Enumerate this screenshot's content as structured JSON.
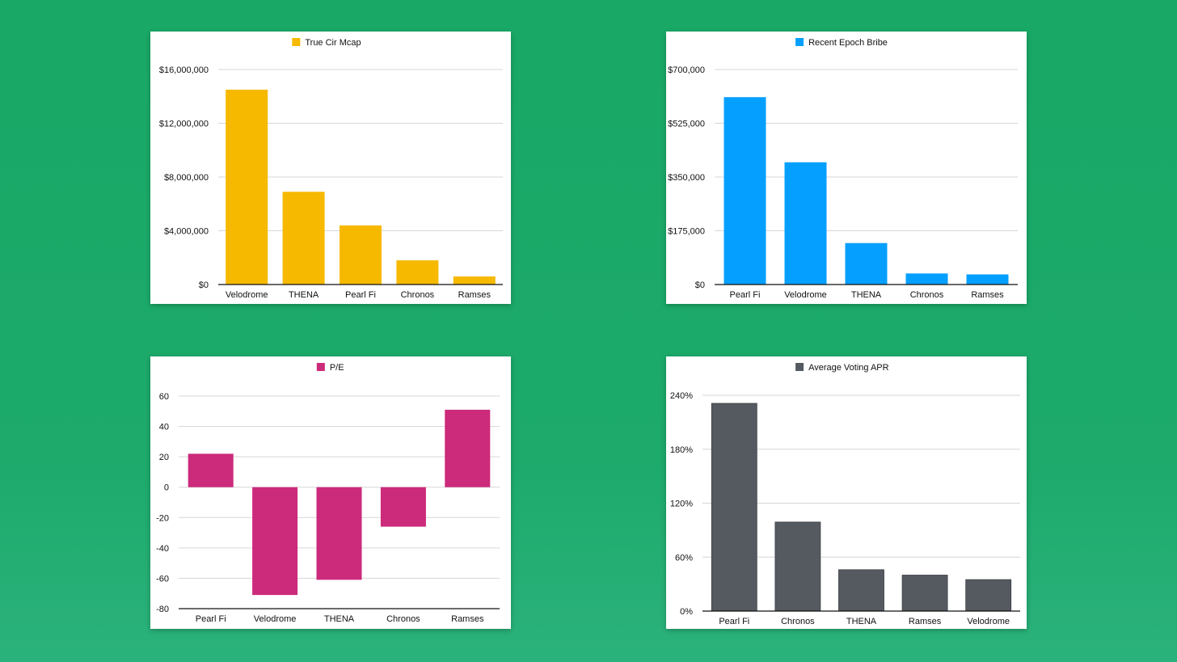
{
  "background_color": "#1aa869",
  "chart_data": [
    {
      "type": "bar",
      "legend": "True Cir Mcap",
      "color": "#f6b900",
      "categories": [
        "Velodrome",
        "THENA",
        "Pearl Fi",
        "Chronos",
        "Ramses"
      ],
      "values": [
        14500000,
        6900000,
        4400000,
        1800000,
        600000
      ],
      "ylim": [
        0,
        16000000
      ],
      "ticks": [
        0,
        4000000,
        8000000,
        12000000,
        16000000
      ],
      "tick_labels": [
        "$0",
        "$4,000,000",
        "$8,000,000",
        "$12,000,000",
        "$16,000,000"
      ],
      "grid": true,
      "legend_position": "top-center"
    },
    {
      "type": "bar",
      "legend": "Recent Epoch Bribe",
      "color": "#05a0ff",
      "categories": [
        "Pearl Fi",
        "Velodrome",
        "THENA",
        "Chronos",
        "Ramses"
      ],
      "values": [
        610000,
        398000,
        135000,
        36000,
        33000
      ],
      "ylim": [
        0,
        700000
      ],
      "ticks": [
        0,
        175000,
        350000,
        525000,
        700000
      ],
      "tick_labels": [
        "$0",
        "$175,000",
        "$350,000",
        "$525,000",
        "$700,000"
      ],
      "grid": true,
      "legend_position": "top-center"
    },
    {
      "type": "bar",
      "legend": "P/E",
      "color": "#cc2a7a",
      "categories": [
        "Pearl Fi",
        "Velodrome",
        "THENA",
        "Chronos",
        "Ramses"
      ],
      "values": [
        22,
        -71,
        -61,
        -26,
        51
      ],
      "ylim": [
        -80,
        60
      ],
      "ticks": [
        -80,
        -60,
        -40,
        -20,
        0,
        20,
        40,
        60
      ],
      "tick_labels": [
        "-80",
        "-60",
        "-40",
        "-20",
        "0",
        "20",
        "40",
        "60"
      ],
      "grid": true,
      "legend_position": "top-center"
    },
    {
      "type": "bar",
      "legend": "Average Voting APR",
      "color": "#555a61",
      "categories": [
        "Pearl Fi",
        "Chronos",
        "THENA",
        "Ramses",
        "Velodrome"
      ],
      "values": [
        231,
        99,
        46,
        40,
        35
      ],
      "ylim": [
        0,
        240
      ],
      "ticks": [
        0,
        60,
        120,
        180,
        240
      ],
      "tick_labels": [
        "0%",
        "60%",
        "120%",
        "180%",
        "240%"
      ],
      "grid": true,
      "legend_position": "top-center"
    }
  ]
}
